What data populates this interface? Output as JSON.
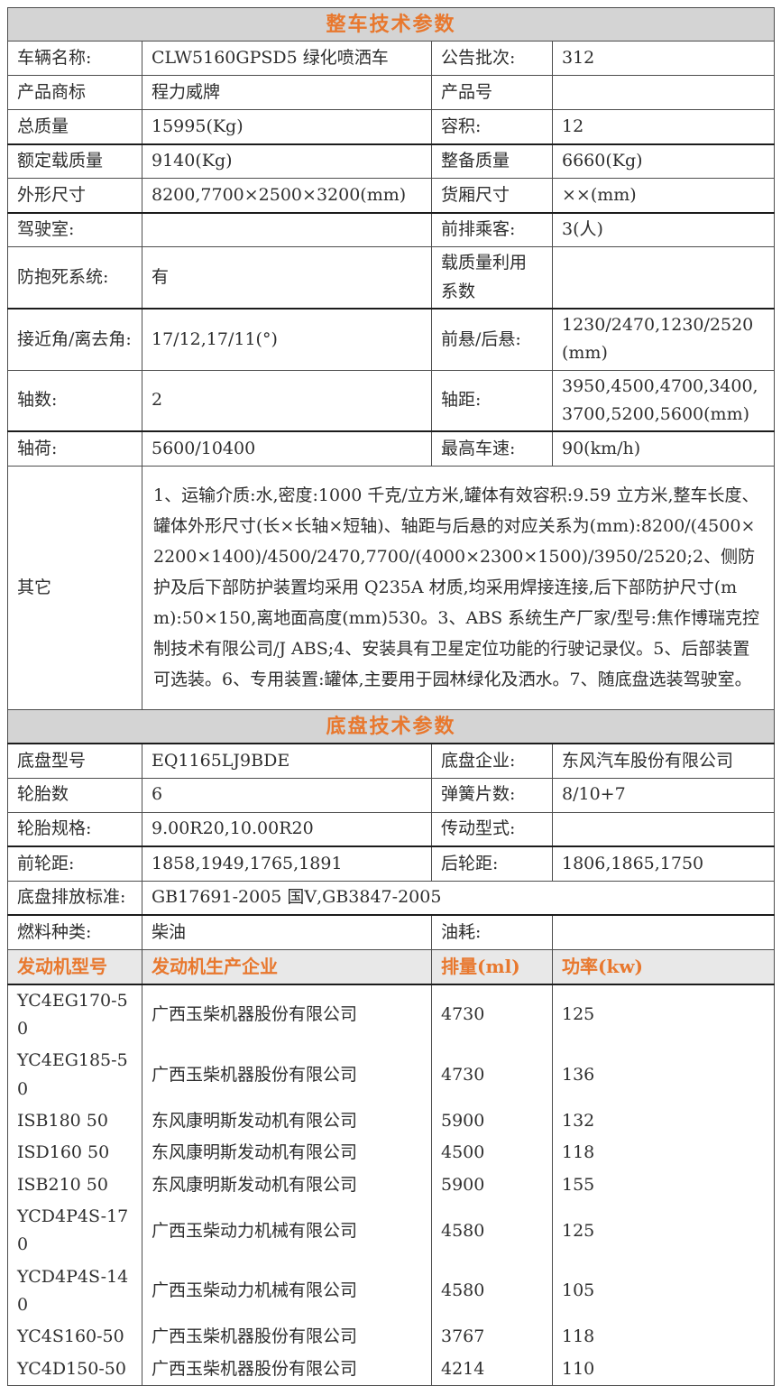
{
  "colors": {
    "accent_orange": "#E8782E",
    "section_header_bg": "#D4D4D4",
    "engine_header_bg": "#E8E8E8",
    "border": "#4D4D4D",
    "text": "#2E2E2E"
  },
  "vehicle": {
    "title": "整车技术参数",
    "rows": [
      [
        "车辆名称:",
        "CLW5160GPSD5 绿化喷洒车",
        "公告批次:",
        "312"
      ],
      [
        "产品商标",
        "程力威牌",
        "产品号",
        ""
      ],
      [
        "总质量",
        "15995(Kg)",
        "容积:",
        "12"
      ],
      [
        "额定载质量",
        "9140(Kg)",
        "整备质量",
        "6660(Kg)"
      ],
      [
        "外形尺寸",
        "8200,7700×2500×3200(mm)",
        "货厢尺寸",
        "××(mm)"
      ],
      [
        "驾驶室:",
        "",
        "前排乘客:",
        "3(人)"
      ],
      [
        "防抱死系统:",
        "有",
        "载质量利用系数",
        ""
      ],
      [
        "接近角/离去角:",
        "17/12,17/11(°)",
        "前悬/后悬:",
        "1230/2470,1230/2520(mm)"
      ],
      [
        "轴数:",
        "2",
        "轴距:",
        "3950,4500,4700,3400,3700,5200,5600(mm)"
      ],
      [
        "轴荷:",
        "5600/10400",
        "最高车速:",
        "90(km/h)"
      ]
    ],
    "other_label": "其它",
    "other_text": "1、运输介质:水,密度:1000 千克/立方米,罐体有效容积:9.59 立方米,整车长度、罐体外形尺寸(长×长轴×短轴)、轴距与后悬的对应关系为(mm):8200/(4500×2200×1400)/4500/2470,7700/(4000×2300×1500)/3950/2520;2、侧防护及后下部防护装置均采用 Q235A 材质,均采用焊接连接,后下部防护尺寸(mm):50×150,离地面高度(mm)530。3、ABS 系统生产厂家/型号:焦作博瑞克控制技术有限公司/J ABS;4、安装具有卫星定位功能的行驶记录仪。5、后部装置可选装。6、专用装置:罐体,主要用于园林绿化及洒水。7、随底盘选装驾驶室。"
  },
  "chassis": {
    "title": "底盘技术参数",
    "rows": [
      [
        "底盘型号",
        "EQ1165LJ9BDE",
        "底盘企业:",
        "东风汽车股份有限公司"
      ],
      [
        "轮胎数",
        "6",
        "弹簧片数:",
        "8/10+7"
      ],
      [
        "轮胎规格:",
        "9.00R20,10.00R20",
        "传动型式:",
        ""
      ],
      [
        "前轮距:",
        "1858,1949,1765,1891",
        "后轮距:",
        "1806,1865,1750"
      ]
    ],
    "emission_label": "底盘排放标准:",
    "emission_value": "GB17691-2005 国Ⅴ,GB3847-2005",
    "fuel_row": [
      "燃料种类:",
      "柴油",
      "油耗:",
      ""
    ]
  },
  "engines": {
    "headers": [
      "发动机型号",
      "发动机生产企业",
      "排量(ml)",
      "功率(kw)"
    ],
    "rows": [
      [
        "YC4EG170-50",
        "广西玉柴机器股份有限公司",
        "4730",
        "125"
      ],
      [
        "YC4EG185-50",
        "广西玉柴机器股份有限公司",
        "4730",
        "136"
      ],
      [
        "ISB180 50",
        "东风康明斯发动机有限公司",
        "5900",
        "132"
      ],
      [
        "ISD160 50",
        "东风康明斯发动机有限公司",
        "4500",
        "118"
      ],
      [
        "ISB210 50",
        "东风康明斯发动机有限公司",
        "5900",
        "155"
      ],
      [
        "YCD4P4S-170",
        "广西玉柴动力机械有限公司",
        "4580",
        "125"
      ],
      [
        "YCD4P4S-140",
        "广西玉柴动力机械有限公司",
        "4580",
        "105"
      ],
      [
        "YC4S160-50",
        "广西玉柴机器股份有限公司",
        "3767",
        "118"
      ],
      [
        "YC4D150-50",
        "广西玉柴机器股份有限公司",
        "4214",
        "110"
      ]
    ]
  }
}
